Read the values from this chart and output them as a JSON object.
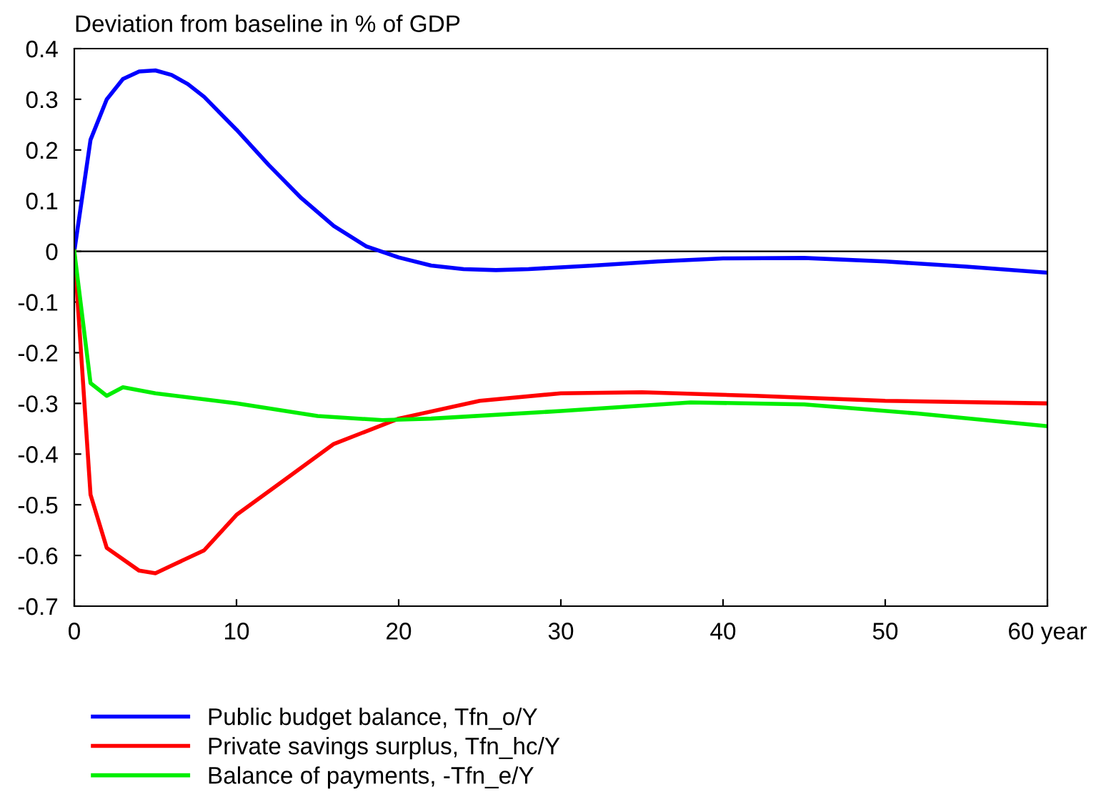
{
  "chart_data": {
    "type": "line",
    "ylabel": "Deviation from baseline in % of GDP",
    "xlim": [
      0,
      60
    ],
    "xticks": [
      0,
      10,
      20,
      30,
      40,
      50,
      {
        "value": 60,
        "label": "60 year"
      }
    ],
    "ylim": [
      -0.7,
      0.4
    ],
    "yticks": [
      -0.7,
      -0.6,
      -0.5,
      -0.4,
      -0.3,
      -0.2,
      -0.1,
      0,
      0.1,
      0.2,
      0.3,
      0.4
    ],
    "grid": false,
    "legend": "bottom",
    "line_style": "solid",
    "marker": "none",
    "ref_lines": [
      {
        "axis": "y",
        "value": 0,
        "color": "#000000"
      }
    ],
    "series": [
      {
        "name": "Public budget balance, Tfn_o/Y",
        "color": "#0000ff",
        "x": [
          0,
          1,
          2,
          3,
          4,
          5,
          6,
          7,
          8,
          10,
          12,
          14,
          16,
          18,
          20,
          22,
          24,
          26,
          28,
          32,
          36,
          40,
          45,
          50,
          55,
          60
        ],
        "values": [
          0,
          0.22,
          0.3,
          0.34,
          0.355,
          0.357,
          0.348,
          0.33,
          0.305,
          0.24,
          0.17,
          0.105,
          0.05,
          0.01,
          -0.012,
          -0.028,
          -0.035,
          -0.037,
          -0.035,
          -0.028,
          -0.02,
          -0.014,
          -0.013,
          -0.02,
          -0.03,
          -0.042
        ]
      },
      {
        "name": "Private savings surplus, Tfn_hc/Y",
        "color": "#ff0000",
        "x": [
          0,
          1,
          2,
          4,
          5,
          6,
          8,
          10,
          13,
          16,
          20,
          25,
          30,
          35,
          42,
          50,
          60
        ],
        "values": [
          0,
          -0.48,
          -0.585,
          -0.63,
          -0.635,
          -0.62,
          -0.59,
          -0.52,
          -0.45,
          -0.38,
          -0.33,
          -0.295,
          -0.28,
          -0.278,
          -0.285,
          -0.295,
          -0.3
        ]
      },
      {
        "name": "Balance of payments, -Tfn_e/Y",
        "color": "#00ee00",
        "x": [
          0,
          1,
          2,
          3,
          5,
          10,
          15,
          19,
          22,
          30,
          38,
          45,
          52,
          60
        ],
        "values": [
          0,
          -0.26,
          -0.285,
          -0.268,
          -0.28,
          -0.3,
          -0.325,
          -0.333,
          -0.33,
          -0.315,
          -0.298,
          -0.302,
          -0.32,
          -0.345
        ]
      }
    ]
  }
}
